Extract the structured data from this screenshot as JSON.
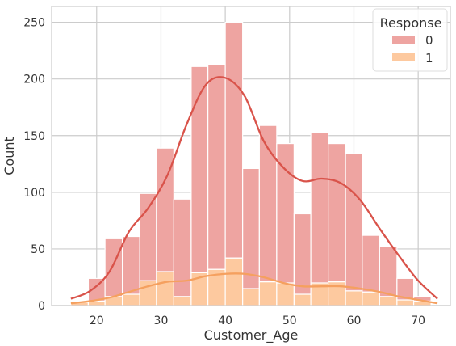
{
  "chart_data": {
    "type": "bar",
    "subtype": "stacked-histogram-with-kde",
    "xlabel": "Customer_Age",
    "ylabel": "Count",
    "xlim": [
      13,
      75
    ],
    "ylim": [
      0,
      264
    ],
    "x_ticks": [
      20,
      30,
      40,
      50,
      60,
      70
    ],
    "y_ticks": [
      0,
      50,
      100,
      150,
      200,
      250
    ],
    "grid": true,
    "legend": {
      "title": "Response",
      "placement": "top-right"
    },
    "bins": {
      "edges": [
        16.0,
        18.7,
        21.3,
        24.0,
        26.7,
        29.3,
        32.0,
        34.7,
        37.3,
        40.0,
        42.7,
        45.3,
        48.0,
        50.7,
        53.3,
        56.0,
        58.7,
        61.3,
        64.0,
        66.7,
        69.3,
        72.0,
        73.0
      ]
    },
    "series": [
      {
        "name": "1",
        "color": "#fdc99f",
        "line_color": "#f5a05f",
        "values": [
          3,
          4,
          8,
          10,
          22,
          30,
          8,
          29,
          32,
          42,
          15,
          21,
          20,
          10,
          20,
          21,
          13,
          12,
          8,
          5,
          4,
          0
        ]
      },
      {
        "name": "0",
        "color": "#eea4a1",
        "line_color": "#d9534a",
        "values": [
          1,
          20,
          51,
          51,
          77,
          109,
          86,
          182,
          181,
          208,
          106,
          138,
          123,
          71,
          133,
          122,
          121,
          50,
          44,
          19,
          4,
          0
        ]
      }
    ],
    "kde": [
      {
        "name": "0",
        "x": [
          16,
          19,
          22,
          25,
          28,
          31,
          34,
          37,
          40,
          43,
          46,
          49,
          52,
          55,
          58,
          61,
          64,
          67,
          70,
          73
        ],
        "y": [
          6,
          13,
          30,
          65,
          86,
          115,
          160,
          195,
          201,
          185,
          145,
          122,
          110,
          112,
          108,
          93,
          68,
          44,
          22,
          6
        ]
      },
      {
        "name": "1",
        "x": [
          16,
          19,
          22,
          25,
          28,
          31,
          34,
          37,
          40,
          43,
          46,
          49,
          52,
          55,
          58,
          61,
          64,
          67,
          70,
          73
        ],
        "y": [
          2,
          4,
          7,
          12,
          17,
          21,
          22,
          26,
          28,
          28,
          25,
          20,
          17,
          17,
          17,
          15,
          12,
          8,
          5,
          2
        ]
      }
    ]
  }
}
